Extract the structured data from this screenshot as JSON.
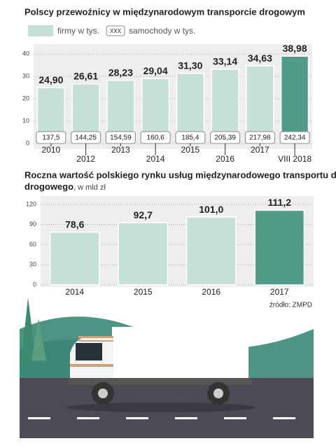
{
  "chart_data": [
    {
      "type": "bar",
      "title": "Polscy przewoźnicy w międzynarodowym transporcie drogowym",
      "categories": [
        "2010",
        "2012",
        "2013",
        "2014",
        "2015",
        "2016",
        "2017",
        "VIII 2018"
      ],
      "series": [
        {
          "name": "firmy w tys.",
          "color": "#c5e0d6",
          "highlight_color": "#4f9c88",
          "values": [
            24.9,
            26.61,
            28.23,
            29.04,
            31.3,
            33.14,
            34.63,
            38.98
          ],
          "value_labels": [
            "24,90",
            "26,61",
            "28,23",
            "29,04",
            "31,30",
            "33,14",
            "34,63",
            "38,98"
          ]
        },
        {
          "name": "samochody w tys.",
          "legend_sample": "XXX",
          "values": [
            137.5,
            144.25,
            154.59,
            160.6,
            185.4,
            205.39,
            217.98,
            242.34
          ],
          "value_labels": [
            "137,5",
            "144,25",
            "154,59",
            "160,6",
            "185,4",
            "205,39",
            "217,98",
            "242,34"
          ]
        }
      ],
      "ylim": [
        0,
        40
      ],
      "yticks": [
        0,
        10,
        20,
        30,
        40
      ],
      "grid": true
    },
    {
      "type": "bar",
      "title": "Roczna wartość polskiego rynku usług międzynarodowego transportu drogowego",
      "subtitle": ", w mld zł",
      "categories": [
        "2014",
        "2015",
        "2016",
        "2017"
      ],
      "values": [
        78.6,
        92.7,
        101.0,
        111.2
      ],
      "value_labels": [
        "78,6",
        "92,7",
        "101,0",
        "111,2"
      ],
      "colors": [
        "#c5e0d6",
        "#c5e0d6",
        "#c5e0d6",
        "#4f9c88"
      ],
      "ylim": [
        0,
        120
      ],
      "yticks": [
        0,
        30,
        60,
        90,
        120
      ],
      "grid": true,
      "source": "źródło: ZMPD"
    }
  ]
}
